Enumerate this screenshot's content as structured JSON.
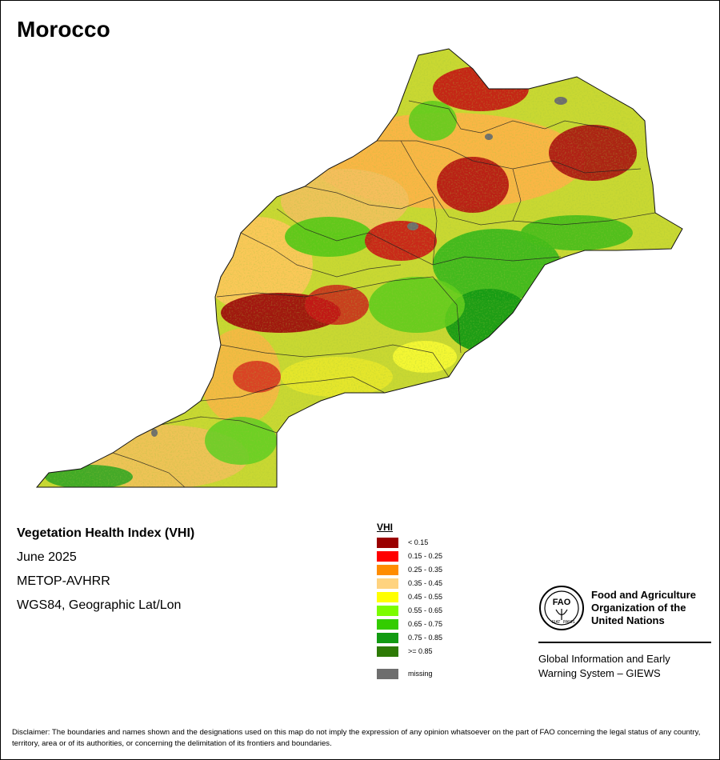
{
  "map": {
    "country": "Morocco",
    "fill_color": "#c9d832",
    "border_color": "#111111"
  },
  "info": {
    "index_name": "Vegetation Health Index (VHI)",
    "period": "June 2025",
    "sensor": "METOP-AVHRR",
    "projection": "WGS84, Geographic Lat/Lon"
  },
  "legend": {
    "title": "VHI",
    "items": [
      {
        "label": "< 0.15",
        "color": "#9a0000"
      },
      {
        "label": "0.15 - 0.25",
        "color": "#ff0000"
      },
      {
        "label": "0.25 - 0.35",
        "color": "#ff8c00"
      },
      {
        "label": "0.35 - 0.45",
        "color": "#ffd37f"
      },
      {
        "label": "0.45 - 0.55",
        "color": "#ffff00"
      },
      {
        "label": "0.55 - 0.65",
        "color": "#7cfc00"
      },
      {
        "label": "0.65 - 0.75",
        "color": "#33cc00"
      },
      {
        "label": "0.75 - 0.85",
        "color": "#129b12"
      },
      {
        "label": ">= 0.85",
        "color": "#2d7a05"
      }
    ],
    "missing": {
      "label": "missing",
      "color": "#6e6e6e"
    }
  },
  "org": {
    "name_line1": "Food and Agriculture",
    "name_line2": "Organization of the",
    "name_line3": "United Nations",
    "emblem_text": "FAO FIAT PANIS",
    "system_line1": "Global Information and Early",
    "system_line2": "Warning System – GIEWS"
  },
  "disclaimer": "Disclaimer: The boundaries and names shown and the designations used on this map do not imply the expression of any opinion whatsoever on the part of FAO concerning the legal status of any country, territory, area or of its authorities, or concerning the delimitation of its frontiers and boundaries."
}
